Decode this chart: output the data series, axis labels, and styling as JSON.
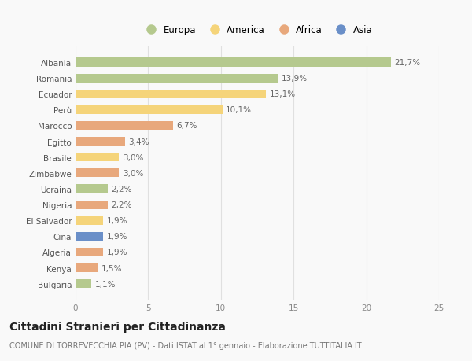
{
  "countries": [
    "Albania",
    "Romania",
    "Ecuador",
    "Perù",
    "Marocco",
    "Egitto",
    "Brasile",
    "Zimbabwe",
    "Ucraina",
    "Nigeria",
    "El Salvador",
    "Cina",
    "Algeria",
    "Kenya",
    "Bulgaria"
  ],
  "values": [
    21.7,
    13.9,
    13.1,
    10.1,
    6.7,
    3.4,
    3.0,
    3.0,
    2.2,
    2.2,
    1.9,
    1.9,
    1.9,
    1.5,
    1.1
  ],
  "labels": [
    "21,7%",
    "13,9%",
    "13,1%",
    "10,1%",
    "6,7%",
    "3,4%",
    "3,0%",
    "3,0%",
    "2,2%",
    "2,2%",
    "1,9%",
    "1,9%",
    "1,9%",
    "1,5%",
    "1,1%"
  ],
  "continents": [
    "Europa",
    "Europa",
    "America",
    "America",
    "Africa",
    "Africa",
    "America",
    "Africa",
    "Europa",
    "Africa",
    "America",
    "Asia",
    "Africa",
    "Africa",
    "Europa"
  ],
  "continent_colors": {
    "Europa": "#b5c98e",
    "America": "#f5d47a",
    "Africa": "#e8a87c",
    "Asia": "#6a8fc8"
  },
  "legend_order": [
    "Europa",
    "America",
    "Africa",
    "Asia"
  ],
  "title": "Cittadini Stranieri per Cittadinanza",
  "subtitle": "COMUNE DI TORREVECCHIA PIA (PV) - Dati ISTAT al 1° gennaio - Elaborazione TUTTITALIA.IT",
  "xlim": [
    0,
    25
  ],
  "xticks": [
    0,
    5,
    10,
    15,
    20,
    25
  ],
  "background_color": "#f9f9f9",
  "grid_color": "#e0e0e0",
  "bar_height": 0.55,
  "label_fontsize": 7.5,
  "tick_fontsize": 7.5,
  "title_fontsize": 10,
  "subtitle_fontsize": 7.0
}
